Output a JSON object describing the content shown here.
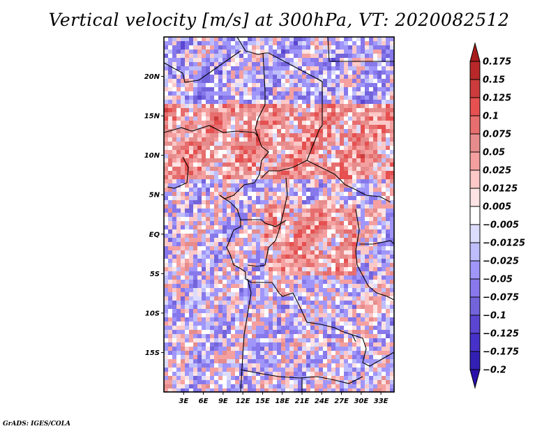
{
  "title": "Vertical velocity [m/s] at 300hPa, VT: 2020082512",
  "credit": "GrADS: IGES/COLA",
  "chart_data": {
    "type": "heatmap",
    "title": "Vertical velocity [m/s] at 300hPa, VT: 2020082512",
    "variable": "Vertical velocity",
    "units": "m/s",
    "level": "300hPa",
    "valid_time": "2020082512",
    "xlabel": "",
    "ylabel": "",
    "x_range_deg": [
      0,
      35
    ],
    "y_range_deg": [
      -20,
      25
    ],
    "x_ticks": [
      "3E",
      "6E",
      "9E",
      "12E",
      "15E",
      "18E",
      "21E",
      "24E",
      "27E",
      "30E",
      "33E"
    ],
    "x_tick_values": [
      3,
      6,
      9,
      12,
      15,
      18,
      21,
      24,
      27,
      30,
      33
    ],
    "y_ticks": [
      "20N",
      "15N",
      "10N",
      "5N",
      "EQ",
      "5S",
      "10S",
      "15S"
    ],
    "y_tick_values": [
      20,
      15,
      10,
      5,
      0,
      -5,
      -10,
      -15
    ],
    "colorbar": {
      "levels": [
        "0.175",
        "0.15",
        "0.125",
        "0.1",
        "0.075",
        "0.05",
        "0.025",
        "0.0125",
        "0.005",
        "-0.005",
        "-0.0125",
        "-0.025",
        "-0.05",
        "-0.075",
        "-0.1",
        "-0.125",
        "-0.175",
        "-0.2"
      ],
      "colors": [
        "#a81c1c",
        "#b82828",
        "#cc3c3c",
        "#e65050",
        "#e66e6e",
        "#e68c8c",
        "#f5a0a0",
        "#fcc8c8",
        "#fde3e3",
        "#ffffff",
        "#dcdcfc",
        "#bebefc",
        "#a096fa",
        "#8778eb",
        "#7364dc",
        "#5a46d2",
        "#4632c8",
        "#3220b4",
        "#2a10aa"
      ],
      "orientation": "vertical",
      "extend": "both"
    },
    "summary": "Positive (upward, red) vertical velocity dominant over Sahel band ~8N-17N and central Congo basin ~2N-5S; negative (blue) over Sahara north of 17N, Gulf of Guinea/Atlantic and southern Angola."
  }
}
